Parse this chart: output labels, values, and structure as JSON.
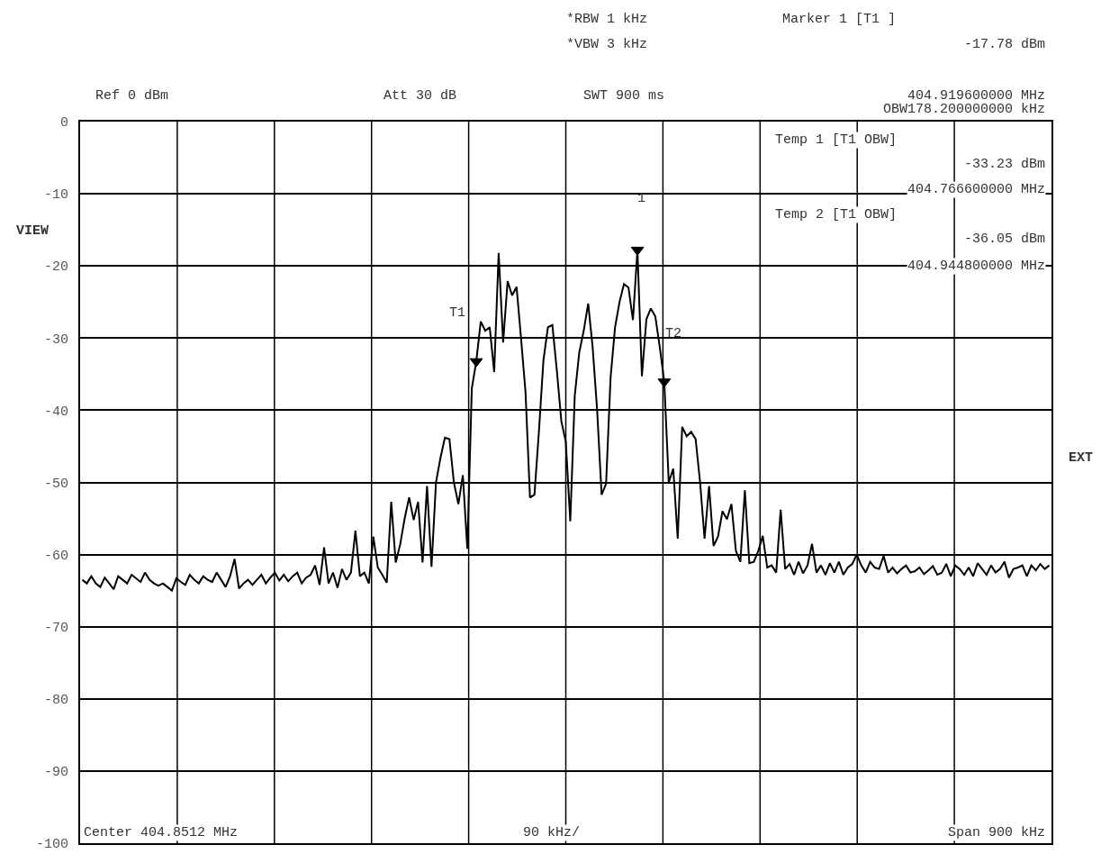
{
  "chart_data": {
    "type": "line",
    "categories": [
      null,
      null,
      null,
      null,
      null,
      null,
      null,
      null,
      null,
      null,
      null,
      null,
      null,
      null,
      null,
      null,
      null,
      null,
      null,
      null,
      null,
      null,
      null,
      null,
      null,
      null,
      null,
      null,
      null,
      null,
      null,
      null,
      null,
      null,
      null,
      null,
      null,
      null,
      null,
      null,
      null,
      null,
      null,
      null,
      null,
      null,
      null,
      null,
      null,
      null,
      null,
      null,
      null,
      null,
      null,
      null,
      null,
      null,
      null,
      null,
      null,
      null,
      null,
      null,
      null,
      null,
      null,
      null,
      null,
      null,
      null,
      null,
      null,
      null,
      null,
      null,
      null,
      null,
      null,
      null,
      null,
      null,
      null,
      null,
      null,
      null,
      null,
      null,
      null,
      null,
      null,
      null,
      null,
      null,
      null,
      null,
      null,
      null,
      null,
      null,
      null,
      null,
      null,
      null,
      null,
      null,
      null,
      null,
      null,
      null,
      null,
      null,
      null,
      null,
      null,
      null,
      null,
      null,
      null,
      null,
      null,
      null,
      null,
      null,
      null,
      null,
      null,
      null,
      null,
      null,
      null,
      null,
      null,
      null,
      null,
      null,
      null,
      null,
      null,
      null,
      null,
      null,
      null,
      null,
      null,
      null,
      null,
      null,
      null,
      null,
      null,
      null,
      null,
      null,
      null,
      null,
      null,
      null,
      null,
      null,
      null,
      null,
      null,
      null,
      null,
      null,
      null,
      null,
      null,
      null,
      null,
      null,
      null,
      null,
      null,
      null,
      null,
      null,
      null,
      null,
      null,
      null,
      null,
      null,
      null,
      null,
      null,
      null,
      null,
      null,
      null,
      null,
      null,
      null,
      null,
      null,
      null,
      null,
      null,
      null,
      null,
      null,
      null,
      null,
      null,
      null,
      null,
      null,
      null,
      null,
      null,
      null,
      null,
      null,
      null,
      null,
      null
    ],
    "ylim": [
      -100,
      0
    ],
    "yticks": [
      0,
      -10,
      -20,
      -30,
      -40,
      -50,
      -60,
      -70,
      -80,
      -90,
      -100
    ],
    "grid": true,
    "tick_labels": "y",
    "series": [
      {
        "type": "line",
        "color": "#000000",
        "values": [
          -63.5,
          -64.0,
          -63.0,
          -64.0,
          -64.5,
          -63.2,
          -64.0,
          -64.8,
          -63.0,
          -63.5,
          -64.0,
          -62.8,
          -63.3,
          -63.8,
          -62.5,
          -63.5,
          -64.0,
          -64.3,
          -64.0,
          -64.5,
          -65.0,
          -63.3,
          -63.8,
          -64.2,
          -62.8,
          -63.5,
          -64.0,
          -63.0,
          -63.5,
          -63.8,
          -62.5,
          -63.5,
          -64.5,
          -63.0,
          -60.6,
          -64.7,
          -64.0,
          -63.5,
          -64.2,
          -63.5,
          -62.8,
          -64.0,
          -63.2,
          -62.5,
          -63.6,
          -62.8,
          -63.7,
          -63.0,
          -62.5,
          -64.0,
          -63.2,
          -62.8,
          -61.5,
          -64.2,
          -59.0,
          -64.0,
          -62.5,
          -64.6,
          -62.0,
          -63.5,
          -62.5,
          -56.7,
          -63.0,
          -62.5,
          -64.0,
          -57.5,
          -61.8,
          -62.8,
          -63.9,
          -52.7,
          -61.1,
          -58.6,
          -55.0,
          -52.1,
          -55.2,
          -52.7,
          -61.1,
          -50.5,
          -61.7,
          -50.0,
          -46.6,
          -43.8,
          -44.0,
          -50.0,
          -53.0,
          -49.0,
          -59.2,
          -37.0,
          -33.23,
          -27.7,
          -29.0,
          -28.5,
          -34.7,
          -18.2,
          -30.6,
          -22.1,
          -24.1,
          -22.9,
          -30.0,
          -37.5,
          -52.1,
          -51.7,
          -42.9,
          -33.1,
          -28.5,
          -28.2,
          -34.5,
          -41.5,
          -44.4,
          -55.4,
          -38.0,
          -32.0,
          -29.0,
          -25.2,
          -31.3,
          -40.0,
          -51.7,
          -50.2,
          -35.5,
          -28.5,
          -25.0,
          -22.5,
          -23.0,
          -27.5,
          -17.78,
          -35.3,
          -27.4,
          -25.9,
          -27.0,
          -31.3,
          -36.05,
          -50.0,
          -48.1,
          -57.8,
          -42.3,
          -43.6,
          -43.0,
          -44.0,
          -50.0,
          -57.8,
          -50.5,
          -58.8,
          -57.5,
          -54.0,
          -55.1,
          -53.0,
          -59.5,
          -61.0,
          -51.1,
          -61.2,
          -61.0,
          -59.5,
          -57.4,
          -61.8,
          -61.5,
          -62.5,
          -53.8,
          -62.0,
          -61.3,
          -62.8,
          -61.0,
          -62.6,
          -61.5,
          -58.5,
          -62.5,
          -61.5,
          -62.8,
          -61.2,
          -62.5,
          -61.0,
          -62.8,
          -61.8,
          -61.3,
          -60.0,
          -61.5,
          -62.5,
          -61.0,
          -61.8,
          -62.0,
          -60.2,
          -62.5,
          -61.8,
          -62.6,
          -62.0,
          -61.5,
          -62.5,
          -62.3,
          -61.8,
          -62.7,
          -62.2,
          -61.6,
          -62.8,
          -62.5,
          -61.3,
          -63.0,
          -61.5,
          -62.0,
          -62.8,
          -61.8,
          -63.0,
          -61.2,
          -62.0,
          -62.8,
          -61.5,
          -62.5,
          -62.0,
          -61.0,
          -63.2,
          -62.0,
          -61.8,
          -61.5,
          -63.0,
          -61.5,
          -62.2,
          -61.3,
          -62.0,
          -61.5
        ]
      },
      {
        "type": "scatter",
        "color": "#000000",
        "marker": "triangle",
        "values": [
          null,
          null,
          null,
          null,
          null,
          null,
          null,
          null,
          null,
          null,
          null,
          null,
          null,
          null,
          null,
          null,
          null,
          null,
          null,
          null,
          null,
          null,
          null,
          null,
          null,
          null,
          null,
          null,
          null,
          null,
          null,
          null,
          null,
          null,
          null,
          null,
          null,
          null,
          null,
          null,
          null,
          null,
          null,
          null,
          null,
          null,
          null,
          null,
          null,
          null,
          null,
          null,
          null,
          null,
          null,
          null,
          null,
          null,
          null,
          null,
          null,
          null,
          null,
          null,
          null,
          null,
          null,
          null,
          null,
          null,
          null,
          null,
          null,
          null,
          null,
          null,
          null,
          null,
          null,
          null,
          null,
          null,
          null,
          null,
          null,
          null,
          null,
          null,
          -33.23,
          null,
          null,
          null,
          null,
          null,
          null,
          null,
          null,
          null,
          null,
          null,
          null,
          null,
          null,
          null,
          null,
          null,
          null,
          null,
          null,
          null,
          null,
          null,
          null,
          null,
          null,
          null,
          null,
          null,
          null,
          null,
          null,
          null,
          null,
          null,
          -17.78,
          null,
          null,
          null,
          null,
          null,
          -36.05,
          null,
          null,
          null,
          null,
          null,
          null,
          null,
          null,
          null,
          null,
          null,
          null,
          null,
          null,
          null,
          null,
          null,
          null,
          null,
          null,
          null,
          null,
          null,
          null,
          null,
          null,
          null,
          null,
          null,
          null,
          null,
          null,
          null,
          null,
          null,
          null,
          null,
          null,
          null,
          null,
          null,
          null,
          null,
          null,
          null,
          null,
          null,
          null,
          null,
          null,
          null,
          null,
          null,
          null,
          null,
          null,
          null,
          null,
          null,
          null,
          null,
          null,
          null,
          null,
          null,
          null,
          null,
          null,
          null,
          null,
          null,
          null,
          null,
          null,
          null,
          null,
          null,
          null,
          null,
          null,
          null,
          null,
          null,
          null,
          null,
          null
        ]
      }
    ],
    "annotations": [
      "Ref 0 dBm",
      "Att 30 dB",
      "*RBW 1 kHz",
      "*VBW 3 kHz",
      "SWT 900 ms",
      "Marker 1 [T1 ]",
      "-17.78 dBm",
      "404.919600000 MHz",
      "OBW178.200000000 kHz",
      "Temp 1 [T1 OBW]",
      "-33.23 dBm",
      "404.766600000 MHz",
      "Temp 2 [T1 OBW]",
      "-36.05 dBm",
      "404.944800000 MHz",
      "VIEW",
      "EXT",
      "Center 404.8512 MHz",
      "90 kHz/",
      "Span 900 kHz",
      "T1",
      "1",
      "T2"
    ]
  }
}
